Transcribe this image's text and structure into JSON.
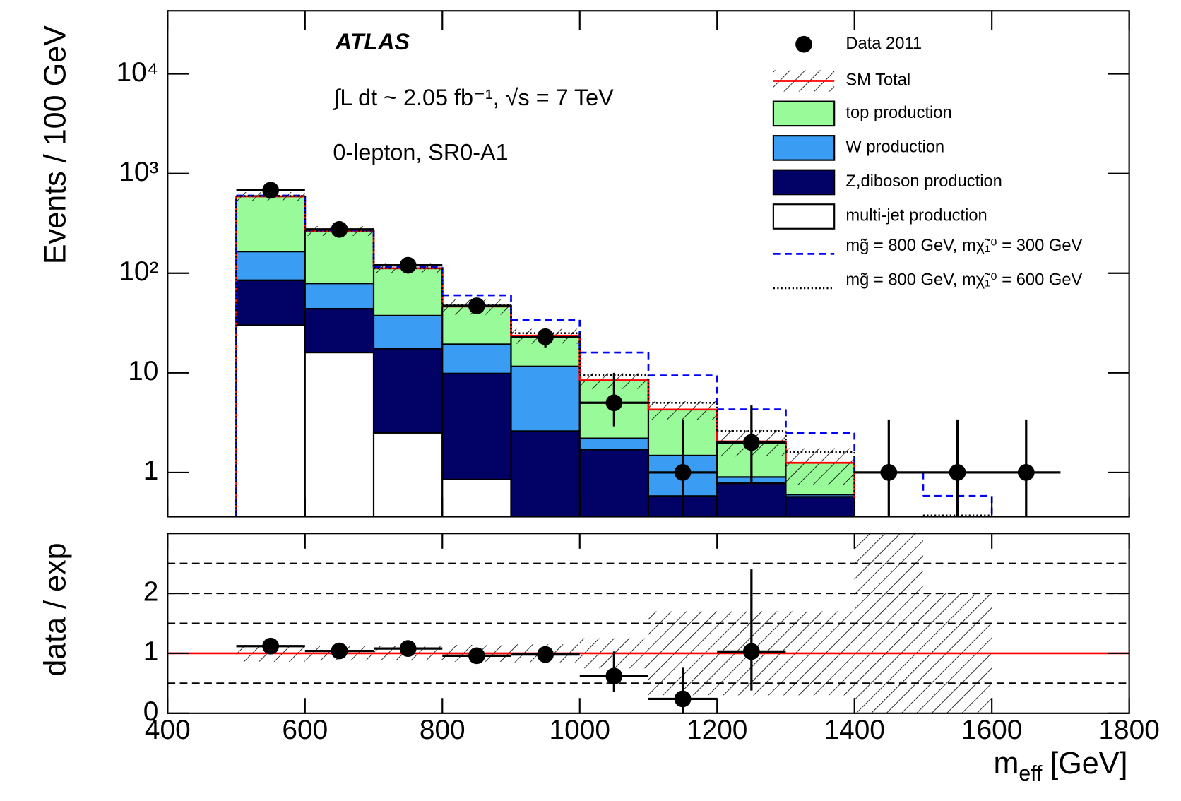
{
  "chart_data": [
    {
      "type": "histogram",
      "annotations": [
        "ATLAS",
        "∫L dt ~ 2.05 fb⁻¹, √s = 7 TeV",
        "0-lepton, SR0-A1"
      ],
      "y_label": "Events / 100 GeV",
      "bins": [
        400,
        500,
        600,
        700,
        800,
        900,
        1000,
        1100,
        1200,
        1300,
        1400,
        1500,
        1600,
        1700,
        1800
      ],
      "xlim": [
        400,
        1800
      ],
      "ylim": [
        0.36,
        43000
      ],
      "log_y": true,
      "yticks": [
        1,
        10,
        {
          "value": 100,
          "label": "10²"
        },
        {
          "value": 1000,
          "label": "10³"
        },
        {
          "value": 10000,
          "label": "10⁴"
        }
      ],
      "legend": "upper right",
      "stack": [
        {
          "name": "multi-jet production",
          "color": "#ffffff",
          "values": [
            0,
            30,
            16,
            2.5,
            0.85,
            0,
            0,
            0,
            0,
            0,
            0,
            0,
            0,
            0
          ]
        },
        {
          "name": "Z,diboson production",
          "color": "#020266",
          "values": [
            0,
            55,
            28,
            15,
            9,
            2.6,
            1.7,
            0.58,
            0.78,
            0.57,
            0,
            0,
            0,
            0
          ]
        },
        {
          "name": "W production",
          "color": "#3a9df3",
          "values": [
            0,
            80,
            35,
            20,
            9.5,
            9,
            0.5,
            0.9,
            0.12,
            0.03,
            0,
            0,
            0,
            0
          ]
        },
        {
          "name": "top production",
          "color": "#99fa99",
          "values": [
            0,
            425,
            188,
            74.5,
            27,
            12,
            6.2,
            2.8,
            1.15,
            0.65,
            0,
            0,
            0,
            0
          ]
        }
      ],
      "sm_total": {
        "name": "SM Total",
        "color": "#ff0000",
        "values": [
          0,
          590,
          267,
          112,
          46.35,
          23.6,
          8.4,
          4.28,
          2.05,
          1.25,
          0,
          0,
          0,
          0
        ],
        "errors": [
          0,
          60,
          30,
          12,
          8,
          4,
          1.5,
          0.9,
          0.6,
          0.5,
          0,
          0,
          0,
          0
        ]
      },
      "signals": [
        {
          "name": "mg̃ = 800 GeV, mχ̃₁⁰ = 300 GeV",
          "color": "#0000ff",
          "style": "dashed",
          "values": [
            0,
            600,
            270,
            115,
            60,
            34,
            16,
            9.4,
            4.3,
            2.5,
            1.0,
            0.58,
            0.36,
            0
          ]
        },
        {
          "name": "mg̃ = 800 GeV, mχ̃₁⁰ = 600 GeV",
          "color": "#000000",
          "style": "dotted",
          "values": [
            0,
            595,
            268,
            112,
            48,
            25,
            9.5,
            5,
            2.6,
            1.6,
            0.36,
            0.37,
            0,
            0
          ]
        }
      ],
      "data": {
        "name": "Data 2011",
        "color": "#000000",
        "x": [
          550,
          650,
          750,
          850,
          950,
          1050,
          1150,
          1250,
          1450,
          1550,
          1650
        ],
        "values": [
          680,
          275,
          120,
          47,
          23,
          5,
          1,
          2,
          1,
          1,
          1
        ],
        "errors_low": [
          26,
          17,
          11,
          7,
          5,
          2.1,
          1,
          1.22,
          1,
          1,
          1
        ],
        "errors_high": [
          26,
          17,
          11,
          7,
          5,
          5,
          2.4,
          2.7,
          2.4,
          2.4,
          2.4
        ]
      }
    },
    {
      "type": "ratio",
      "y_label": "data / exp",
      "x_label": {
        "symbol": "m",
        "subscript": "eff",
        "unit": "[GeV]"
      },
      "xlim": [
        400,
        1800
      ],
      "xticks": [
        400,
        600,
        800,
        1000,
        1200,
        1400,
        1600,
        1800
      ],
      "ylim": [
        0,
        3
      ],
      "yticks": [
        0,
        1,
        2
      ],
      "reference_lines": [
        0.5,
        1.5,
        2,
        2.5
      ],
      "unity": 1,
      "unity_color": "#ff0000",
      "bins": [
        400,
        500,
        600,
        700,
        800,
        900,
        1000,
        1100,
        1200,
        1300,
        1400,
        1500,
        1600,
        1700,
        1800
      ],
      "band_low": [
        null,
        0.86,
        0.88,
        0.88,
        0.86,
        0.85,
        0.75,
        0.3,
        0.3,
        0.3,
        0,
        0,
        null,
        null
      ],
      "band_high": [
        null,
        1.14,
        1.12,
        1.12,
        1.14,
        1.15,
        1.25,
        1.7,
        1.7,
        1.7,
        3,
        2,
        null,
        null
      ],
      "data": {
        "x": [
          550,
          650,
          750,
          850,
          950,
          1050,
          1150,
          1250
        ],
        "values": [
          1.12,
          1.04,
          1.08,
          0.96,
          0.98,
          0.62,
          0.24,
          1.03
        ],
        "errors_low": [
          0.05,
          0.05,
          0.06,
          0.07,
          0.12,
          0.26,
          0.24,
          0.65
        ],
        "errors_high": [
          0.05,
          0.05,
          0.06,
          0.07,
          0.12,
          0.41,
          0.52,
          1.37
        ]
      }
    }
  ]
}
